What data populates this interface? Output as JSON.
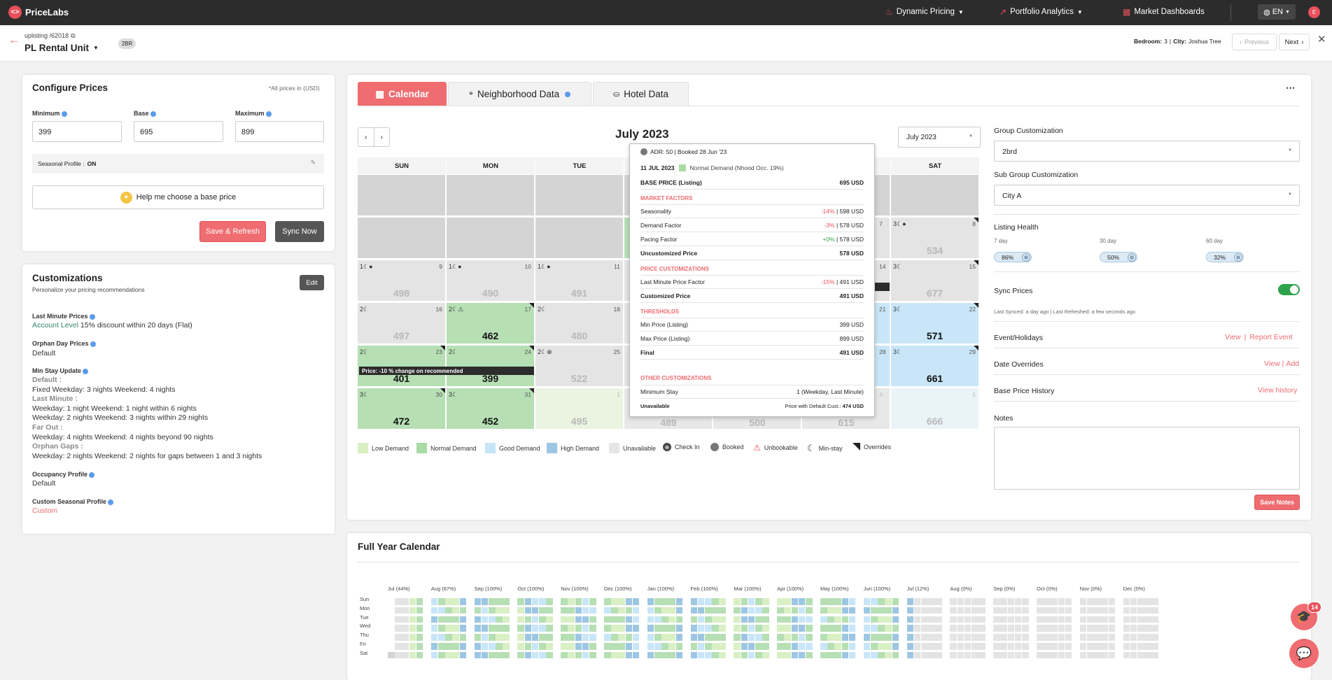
{
  "topbar": {
    "brand": "PriceLabs",
    "nav": [
      {
        "label": "Dynamic Pricing",
        "icon": "flame-icon"
      },
      {
        "label": "Portfolio Analytics",
        "icon": "trend-icon"
      },
      {
        "label": "Market Dashboards",
        "icon": "dashboard-icon"
      }
    ],
    "lang": "EN",
    "user_initial": "E"
  },
  "listing": {
    "breadcrumb": "uplisting /62018",
    "name": "PL Rental Unit",
    "badge": "2BR",
    "bedroom_label": "Bedroom:",
    "bedroom_value": "3",
    "city_label": "City:",
    "city_value": "Joshua Tree",
    "prev_label": "Previous",
    "next_label": "Next"
  },
  "configure": {
    "title": "Configure Prices",
    "currency_note": "*All prices in (USD)",
    "min_label": "Minimum",
    "base_label": "Base",
    "max_label": "Maximum",
    "min_value": "399",
    "base_value": "695",
    "max_value": "899",
    "seasonal_label": "Seasonal Profile :",
    "seasonal_value": "ON",
    "help_label": "Help me choose a base price",
    "save_label": "Save & Refresh",
    "sync_label": "Sync Now"
  },
  "customizations": {
    "title": "Customizations",
    "subtitle": "Personalize your pricing recommendations",
    "edit_label": "Edit",
    "last_minute_label": "Last Minute Prices",
    "last_minute_level": "Account Level",
    "last_minute_value": "15% discount within 20 days (Flat)",
    "orphan_label": "Orphan Day Prices",
    "orphan_value": "Default",
    "minstay_label": "Min Stay Update",
    "minstay_lines": [
      {
        "text": "Default :",
        "head": true
      },
      {
        "text": "Fixed Weekday: 3 nights Weekend: 4 nights",
        "head": false
      },
      {
        "text": "Last Minute :",
        "head": true
      },
      {
        "text": "Weekday: 1 night Weekend: 1 night within 6 nights",
        "head": false
      },
      {
        "text": "Weekday: 2 nights Weekend: 3 nights within 29 nights",
        "head": false
      },
      {
        "text": "Far Out :",
        "head": true
      },
      {
        "text": "Weekday: 4 nights Weekend: 4 nights beyond 90 nights",
        "head": false
      },
      {
        "text": "Orphan Gaps :",
        "head": true
      },
      {
        "text": "Weekday: 2 nights Weekend: 2 nights for gaps between 1 and 3 nights",
        "head": false
      }
    ],
    "occupancy_label": "Occupancy Profile",
    "occupancy_value": "Default",
    "seasonal_label": "Custom Seasonal Profile",
    "seasonal_value": "Custom"
  },
  "tabs": [
    "Calendar",
    "Neighborhood Data",
    "Hotel Data"
  ],
  "calendar": {
    "month_title": "July 2023",
    "month_select": "July 2023",
    "days": [
      "SUN",
      "MON",
      "TUE",
      "WED",
      "THU",
      "FRI",
      "SAT"
    ],
    "cells": [
      {
        "col": 0,
        "row": 0,
        "cls": "c-una",
        "date": "",
        "price": "",
        "mark": ""
      },
      {
        "col": 1,
        "row": 0,
        "cls": "c-una",
        "date": "",
        "price": "",
        "mark": ""
      },
      {
        "col": 2,
        "row": 0,
        "cls": "c-una",
        "date": "",
        "price": "",
        "mark": ""
      },
      {
        "col": 6,
        "row": 0,
        "cls": "c-una",
        "date": "",
        "price": "",
        "mark": ""
      },
      {
        "col": 0,
        "row": 1,
        "cls": "c-una",
        "date": "",
        "price": "",
        "mark": ""
      },
      {
        "col": 1,
        "row": 1,
        "cls": "c-una",
        "date": "",
        "price": "",
        "mark": ""
      },
      {
        "col": 2,
        "row": 1,
        "cls": "c-una",
        "date": "",
        "price": "",
        "mark": ""
      },
      {
        "col": 6,
        "row": 1,
        "cls": "c-past",
        "date": "8",
        "price": "534",
        "mark": "3☾●"
      },
      {
        "col": 0,
        "row": 2,
        "cls": "c-past",
        "date": "9",
        "price": "498",
        "mark": "1☾●"
      },
      {
        "col": 1,
        "row": 2,
        "cls": "c-past",
        "date": "10",
        "price": "490",
        "mark": "1☾●"
      },
      {
        "col": 2,
        "row": 2,
        "cls": "c-past",
        "date": "11",
        "price": "491",
        "mark": "1☾●"
      },
      {
        "col": 6,
        "row": 2,
        "cls": "c-past",
        "date": "15",
        "price": "677",
        "mark": "3☾"
      },
      {
        "col": 0,
        "row": 3,
        "cls": "c-past",
        "date": "16",
        "price": "497",
        "mark": "2☾"
      },
      {
        "col": 1,
        "row": 3,
        "cls": "c-norm",
        "date": "17",
        "price": "462",
        "mark": "2☾⚠"
      },
      {
        "col": 2,
        "row": 3,
        "cls": "c-past",
        "date": "18",
        "price": "480",
        "mark": "2☾"
      },
      {
        "col": 6,
        "row": 3,
        "cls": "c-good",
        "date": "22",
        "price": "571",
        "mark": "3☾"
      },
      {
        "col": 0,
        "row": 4,
        "cls": "c-norm",
        "date": "23",
        "price": "401",
        "mark": "2☾"
      },
      {
        "col": 1,
        "row": 4,
        "cls": "c-norm",
        "date": "24",
        "price": "399",
        "mark": "2☾"
      },
      {
        "col": 2,
        "row": 4,
        "cls": "c-past",
        "date": "25",
        "price": "522",
        "mark": "2☾⊕"
      },
      {
        "col": 6,
        "row": 4,
        "cls": "c-good",
        "date": "29",
        "price": "661",
        "mark": "3☾"
      },
      {
        "col": 0,
        "row": 5,
        "cls": "c-norm",
        "date": "30",
        "price": "472",
        "mark": "3☾"
      },
      {
        "col": 1,
        "row": 5,
        "cls": "c-norm",
        "date": "31",
        "price": "452",
        "mark": "3☾"
      },
      {
        "col": 2,
        "row": 5,
        "cls": "c-low-f",
        "date": "1",
        "price": "495",
        "mark": ""
      },
      {
        "col": 6,
        "row": 5,
        "cls": "c-good-f",
        "date": "5",
        "price": "666",
        "mark": ""
      }
    ],
    "partial_prices": [
      {
        "col": 3,
        "row": 5,
        "price": "489"
      },
      {
        "col": 4,
        "row": 5,
        "price": "500"
      },
      {
        "col": 5,
        "row": 5,
        "price": "615"
      }
    ],
    "partial_dates": [
      {
        "col": 5,
        "row": 1,
        "date": "7"
      },
      {
        "col": 5,
        "row": 2,
        "date": "14"
      },
      {
        "col": 5,
        "row": 3,
        "date": "21"
      },
      {
        "col": 5,
        "row": 4,
        "date": "28"
      },
      {
        "col": 5,
        "row": 5,
        "date": "4"
      }
    ],
    "price_banner": "Price: -10 % change on recommended"
  },
  "tooltip": {
    "header": "ADR: 50 | Booked 28 Jun '23",
    "date": "11 JUL 2023",
    "demand": "Normal Demand (Nhood Occ. 19%)",
    "base_label": "BASE PRICE (Listing)",
    "base_value": "695 USD",
    "sec_market": "MARKET FACTORS",
    "seasonality_label": "Seasonality",
    "seasonality_pct": "-14%",
    "seasonality_value": "| 598 USD",
    "demand_label": "Demand Factor",
    "demand_pct": "-3%",
    "demand_value": "| 578 USD",
    "pacing_label": "Pacing Factor",
    "pacing_pct": "+0%",
    "pacing_value": "| 578 USD",
    "uncust_label": "Uncustomized Price",
    "uncust_value": "578 USD",
    "sec_price": "PRICE CUSTOMIZATIONS",
    "lm_label": "Last Minute Price Factor",
    "lm_pct": "-15%",
    "lm_value": "| 491 USD",
    "cust_label": "Customized Price",
    "cust_value": "491 USD",
    "sec_thr": "THRESHOLDS",
    "minp_label": "Min Price (Listing)",
    "minp_value": "399 USD",
    "maxp_label": "Max Price (Listing)",
    "maxp_value": "899 USD",
    "final_label": "Final",
    "final_value": "491 USD",
    "sec_other": "OTHER CUSTOMIZATIONS",
    "minstay_label": "Minimum Stay",
    "minstay_value": "1 (Weekday, Last Minute)",
    "unavail_label": "Unavailable",
    "unavail_prefix": "Price with Default Cust.:",
    "unavail_value": "474 USD"
  },
  "legend": [
    {
      "label": "Low Demand",
      "color": "#d9efc4"
    },
    {
      "label": "Normal Demand",
      "color": "#a9dba6"
    },
    {
      "label": "Good Demand",
      "color": "#c6e5f7"
    },
    {
      "label": "High Demand",
      "color": "#9dc6e3"
    },
    {
      "label": "Unavailable",
      "color": "#e6e6e6"
    }
  ],
  "legend_icons": [
    {
      "label": "Check In",
      "icon": "checkin-icon"
    },
    {
      "label": "Booked",
      "icon": "booked-icon"
    },
    {
      "label": "Unbookable",
      "icon": "warning-icon"
    },
    {
      "label": "Min-stay",
      "icon": "moon-icon"
    },
    {
      "label": "Overrides",
      "icon": "override-icon"
    }
  ],
  "right_panel": {
    "group_label": "Group Customization",
    "group_value": "2brd",
    "subgroup_label": "Sub Group Customization",
    "subgroup_value": "City A",
    "health_label": "Listing Health",
    "health": [
      {
        "period": "7 day",
        "value": "86%"
      },
      {
        "period": "30 day",
        "value": "50%"
      },
      {
        "period": "60 day",
        "value": "32%"
      }
    ],
    "sync_label": "Sync Prices",
    "sync_status": "Last Synced: a day ago | Last Refreshed: a few seconds ago",
    "events_label": "Event/Holidays",
    "events_view": "View",
    "events_report": "Report Event",
    "overrides_label": "Date Overrides",
    "overrides_view": "View",
    "overrides_add": "Add",
    "history_label": "Base Price History",
    "history_link": "View history",
    "notes_label": "Notes",
    "save_notes": "Save Notes"
  },
  "full_year": {
    "title": "Full Year Calendar",
    "months": [
      "Jul (44%)",
      "Aug (87%)",
      "Sep (100%)",
      "Oct (100%)",
      "Nov (100%)",
      "Dec (100%)",
      "Jan (100%)",
      "Feb (100%)",
      "Mar (100%)",
      "Apr (100%)",
      "May (100%)",
      "Jun (100%)",
      "Jul (12%)",
      "Aug (0%)",
      "Sep (0%)",
      "Oct (0%)",
      "Nov (0%)",
      "Dec (0%)"
    ],
    "days": [
      "Sun",
      "Mon",
      "Tue",
      "Wed",
      "Thu",
      "Fri",
      "Sat"
    ]
  },
  "chat": {
    "badge": "14"
  }
}
